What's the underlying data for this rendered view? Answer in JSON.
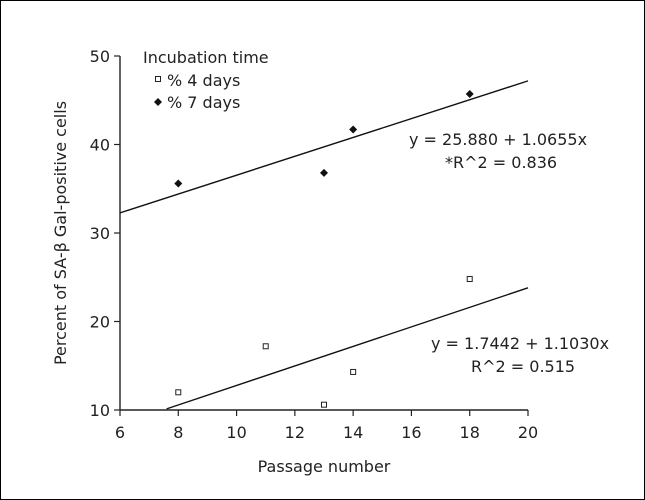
{
  "chart_data": {
    "type": "scatter",
    "title": "",
    "xlabel": "Passage number",
    "ylabel": "Percent of SA-β Gal-positive cells",
    "xlim": [
      6,
      20
    ],
    "ylim": [
      10,
      50
    ],
    "x_ticks": [
      6,
      8,
      10,
      12,
      14,
      16,
      18,
      20
    ],
    "y_ticks": [
      10,
      20,
      30,
      40,
      50
    ],
    "legend": {
      "title": "Incubation time",
      "position": "top-left"
    },
    "series": [
      {
        "name": "% 4 days",
        "marker": "open-square",
        "color": "#222222",
        "points": [
          {
            "x": 8,
            "y": 12.0
          },
          {
            "x": 11,
            "y": 17.2
          },
          {
            "x": 13,
            "y": 10.6
          },
          {
            "x": 14,
            "y": 14.3
          },
          {
            "x": 18,
            "y": 24.8
          }
        ],
        "fit": {
          "intercept": 1.7442,
          "slope": 1.103,
          "x_start": 7.6,
          "x_end": 20
        },
        "equation": "y = 1.7442 + 1.1030x",
        "r2": "R^2 = 0.515"
      },
      {
        "name": "% 7 days",
        "marker": "filled-diamond",
        "color": "#111111",
        "points": [
          {
            "x": 8,
            "y": 35.6
          },
          {
            "x": 13,
            "y": 36.8
          },
          {
            "x": 14,
            "y": 41.7
          },
          {
            "x": 18,
            "y": 45.7
          }
        ],
        "fit": {
          "intercept": 25.88,
          "slope": 1.0655,
          "x_start": 6,
          "x_end": 20
        },
        "equation": "y = 25.880 + 1.0655x",
        "r2": "*R^2 = 0.836"
      }
    ]
  }
}
